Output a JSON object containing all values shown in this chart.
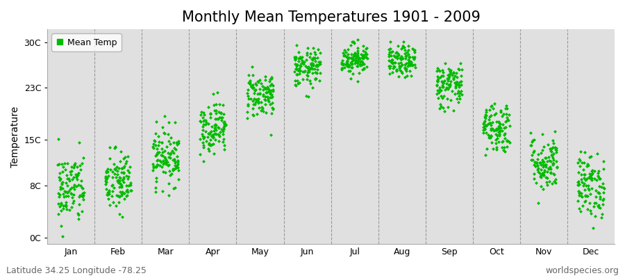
{
  "title": "Monthly Mean Temperatures 1901 - 2009",
  "ylabel": "Temperature",
  "ytick_labels": [
    "0C",
    "8C",
    "15C",
    "23C",
    "30C"
  ],
  "ytick_values": [
    0,
    8,
    15,
    23,
    30
  ],
  "ylim": [
    -1,
    32
  ],
  "months": [
    "Jan",
    "Feb",
    "Mar",
    "Apr",
    "May",
    "Jun",
    "Jul",
    "Aug",
    "Sep",
    "Oct",
    "Nov",
    "Dec"
  ],
  "month_means": [
    7.5,
    8.5,
    12.5,
    17.0,
    22.0,
    26.0,
    27.5,
    27.0,
    23.5,
    17.0,
    11.5,
    8.0
  ],
  "month_stds": [
    2.8,
    2.5,
    2.2,
    2.0,
    1.8,
    1.5,
    1.2,
    1.2,
    1.8,
    2.0,
    2.2,
    2.5
  ],
  "n_years": 109,
  "seed": 42,
  "marker_color": "#00bb00",
  "marker": "D",
  "marker_size": 2.5,
  "background_color": "#e0e0e0",
  "figure_color": "#ffffff",
  "legend_label": "Mean Temp",
  "footer_left": "Latitude 34.25 Longitude -78.25",
  "footer_right": "worldspecies.org",
  "footer_fontsize": 9,
  "title_fontsize": 15,
  "axis_label_fontsize": 10,
  "tick_fontsize": 9
}
